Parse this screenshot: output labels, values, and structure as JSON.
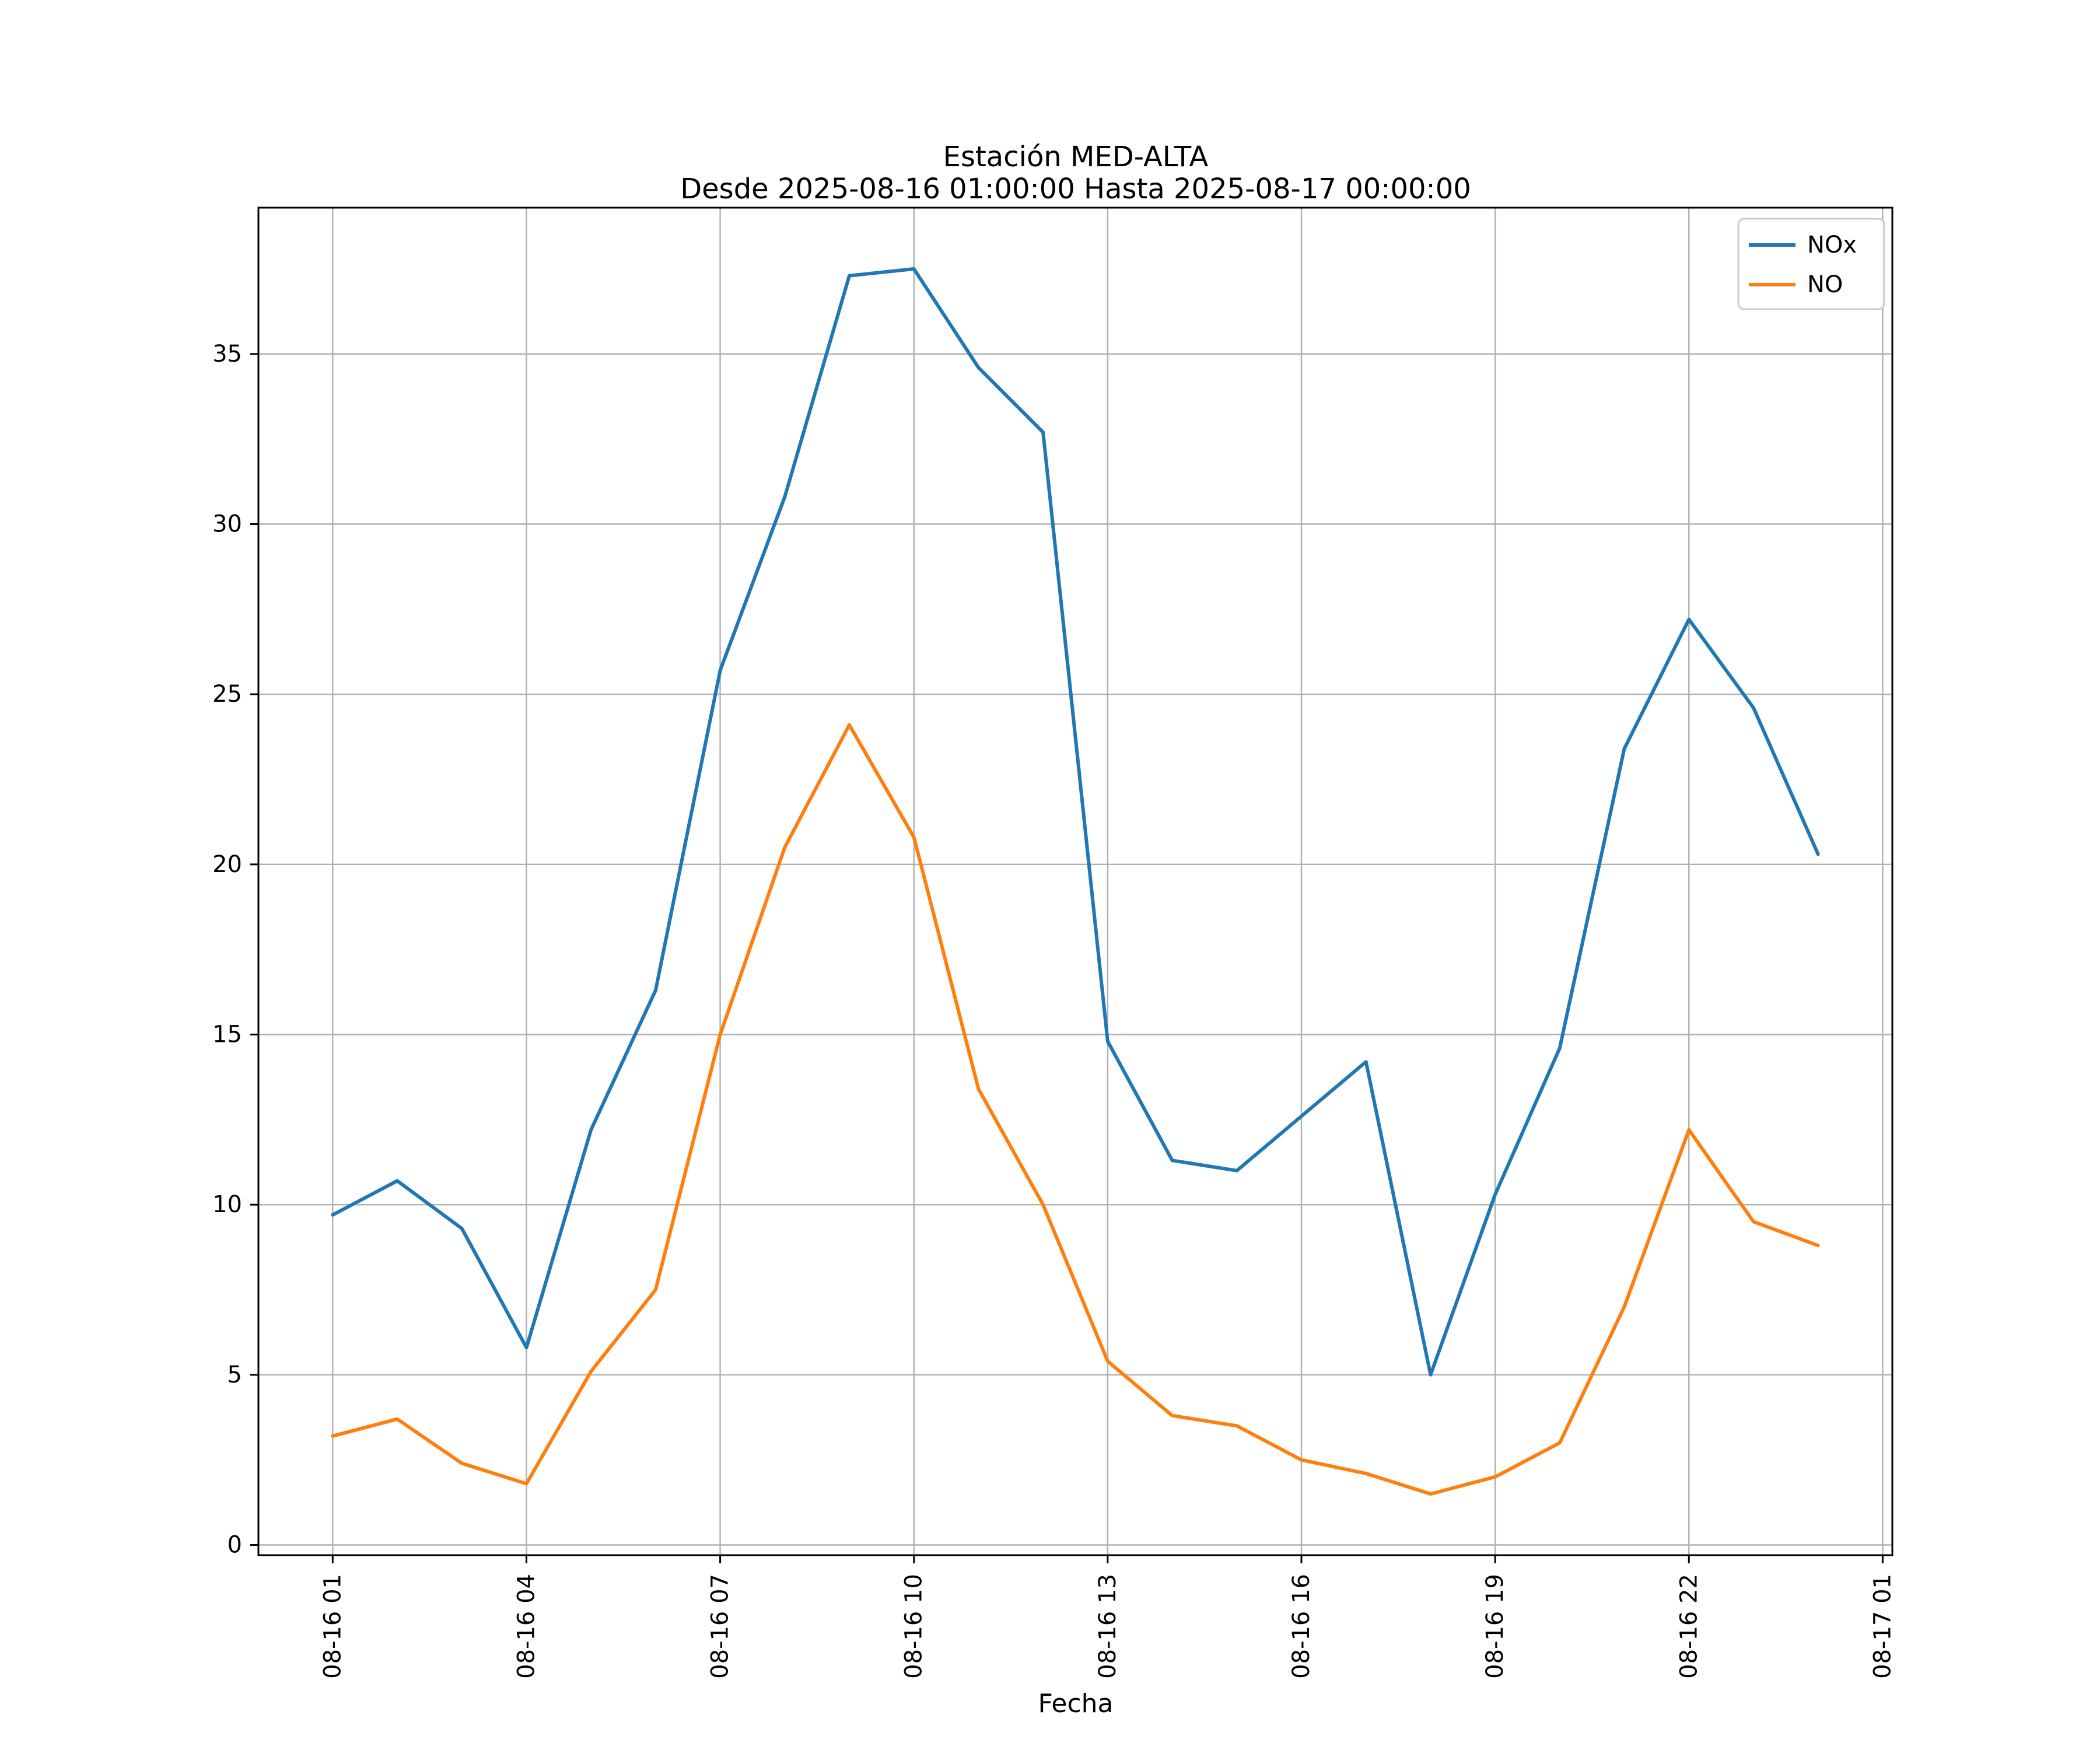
{
  "chart_data": {
    "type": "line",
    "title": "Estación MED-ALTA",
    "subtitle": "Desde 2025-08-16 01:00:00 Hasta 2025-08-17 00:00:00",
    "xlabel": "Fecha",
    "ylabel": "",
    "grid": true,
    "legend_position": "upper right",
    "background_color": "#ffffff",
    "grid_color": "#b0b0b0",
    "xlim": [
      -0.15,
      25.15
    ],
    "ylim": [
      -0.3,
      39.3
    ],
    "x": [
      1,
      2,
      3,
      4,
      5,
      6,
      7,
      8,
      9,
      10,
      11,
      12,
      13,
      14,
      15,
      16,
      17,
      18,
      19,
      20,
      21,
      22,
      23,
      24
    ],
    "x_tick_hours": [
      1,
      4,
      7,
      10,
      13,
      16,
      19,
      22,
      25
    ],
    "x_tick_labels": [
      "08-16 01",
      "08-16 04",
      "08-16 07",
      "08-16 10",
      "08-16 13",
      "08-16 16",
      "08-16 19",
      "08-16 22",
      "08-17 01"
    ],
    "y_ticks": [
      0,
      5,
      10,
      15,
      20,
      25,
      30,
      35
    ],
    "series": [
      {
        "name": "NOx",
        "color": "#1f77b4",
        "values": [
          9.7,
          10.7,
          9.3,
          5.8,
          12.2,
          16.3,
          25.7,
          30.8,
          37.3,
          37.5,
          34.6,
          32.7,
          14.8,
          11.3,
          11.0,
          12.6,
          14.2,
          5.0,
          10.3,
          14.6,
          23.4,
          27.2,
          24.6,
          20.3
        ]
      },
      {
        "name": "NO",
        "color": "#ff7f0e",
        "values": [
          3.2,
          3.7,
          2.4,
          1.8,
          5.1,
          7.5,
          15.0,
          20.5,
          24.1,
          20.8,
          13.4,
          10.0,
          5.4,
          3.8,
          3.5,
          2.5,
          2.1,
          1.5,
          2.0,
          3.0,
          7.0,
          12.2,
          9.5,
          8.8
        ]
      }
    ]
  }
}
